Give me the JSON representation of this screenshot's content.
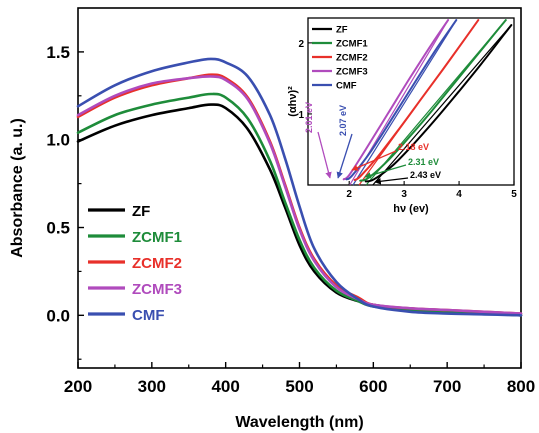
{
  "chart_data": [
    {
      "type": "line",
      "xlabel": "Wavelength (nm)",
      "ylabel": "Absorbance (a. u.)",
      "xlim": [
        200,
        800
      ],
      "ylim": [
        -0.3,
        1.75
      ],
      "x_ticks": [
        "200",
        "300",
        "400",
        "500",
        "600",
        "700",
        "800"
      ],
      "y_ticks": [
        "0.0",
        "0.5",
        "1.0",
        "1.5"
      ],
      "grid": false,
      "legend_position": "bottom-left",
      "series": [
        {
          "name": "ZF",
          "color": "#000000",
          "points": [
            [
              200,
              0.99
            ],
            [
              250,
              1.08
            ],
            [
              300,
              1.14
            ],
            [
              350,
              1.18
            ],
            [
              380,
              1.2
            ],
            [
              400,
              1.18
            ],
            [
              430,
              1.06
            ],
            [
              460,
              0.83
            ],
            [
              480,
              0.62
            ],
            [
              500,
              0.4
            ],
            [
              520,
              0.25
            ],
            [
              550,
              0.13
            ],
            [
              580,
              0.08
            ],
            [
              600,
              0.06
            ],
            [
              650,
              0.03
            ],
            [
              700,
              0.02
            ],
            [
              750,
              0.01
            ],
            [
              800,
              0.0
            ]
          ]
        },
        {
          "name": "ZCMF1",
          "color": "#1e8c3a",
          "points": [
            [
              200,
              1.04
            ],
            [
              250,
              1.14
            ],
            [
              300,
              1.2
            ],
            [
              350,
              1.24
            ],
            [
              380,
              1.26
            ],
            [
              400,
              1.24
            ],
            [
              430,
              1.12
            ],
            [
              460,
              0.88
            ],
            [
              480,
              0.65
            ],
            [
              500,
              0.43
            ],
            [
              520,
              0.27
            ],
            [
              550,
              0.14
            ],
            [
              580,
              0.08
            ],
            [
              600,
              0.05
            ],
            [
              650,
              0.03
            ],
            [
              700,
              0.02
            ],
            [
              750,
              0.01
            ],
            [
              800,
              0.0
            ]
          ]
        },
        {
          "name": "ZCMF2",
          "color": "#e8302a",
          "points": [
            [
              200,
              1.13
            ],
            [
              250,
              1.24
            ],
            [
              300,
              1.31
            ],
            [
              350,
              1.35
            ],
            [
              380,
              1.37
            ],
            [
              400,
              1.35
            ],
            [
              430,
              1.24
            ],
            [
              460,
              0.99
            ],
            [
              480,
              0.75
            ],
            [
              500,
              0.5
            ],
            [
              520,
              0.32
            ],
            [
              550,
              0.17
            ],
            [
              580,
              0.1
            ],
            [
              600,
              0.06
            ],
            [
              650,
              0.04
            ],
            [
              700,
              0.03
            ],
            [
              750,
              0.02
            ],
            [
              800,
              0.01
            ]
          ]
        },
        {
          "name": "ZCMF3",
          "color": "#b04bbd",
          "points": [
            [
              200,
              1.14
            ],
            [
              250,
              1.25
            ],
            [
              300,
              1.32
            ],
            [
              350,
              1.35
            ],
            [
              380,
              1.36
            ],
            [
              400,
              1.34
            ],
            [
              430,
              1.23
            ],
            [
              460,
              0.98
            ],
            [
              480,
              0.74
            ],
            [
              500,
              0.49
            ],
            [
              520,
              0.31
            ],
            [
              550,
              0.16
            ],
            [
              580,
              0.09
            ],
            [
              600,
              0.06
            ],
            [
              650,
              0.04
            ],
            [
              700,
              0.03
            ],
            [
              750,
              0.02
            ],
            [
              800,
              0.01
            ]
          ]
        },
        {
          "name": "CMF",
          "color": "#3a4fb0",
          "points": [
            [
              200,
              1.19
            ],
            [
              250,
              1.31
            ],
            [
              300,
              1.39
            ],
            [
              350,
              1.44
            ],
            [
              380,
              1.46
            ],
            [
              400,
              1.44
            ],
            [
              430,
              1.36
            ],
            [
              460,
              1.14
            ],
            [
              480,
              0.9
            ],
            [
              500,
              0.62
            ],
            [
              520,
              0.38
            ],
            [
              550,
              0.19
            ],
            [
              580,
              0.09
            ],
            [
              600,
              0.05
            ],
            [
              650,
              0.02
            ],
            [
              700,
              0.01
            ],
            [
              750,
              0.005
            ],
            [
              800,
              0.0
            ]
          ]
        }
      ]
    },
    {
      "type": "line",
      "xlabel": "hν (ev)",
      "ylabel": "(αhν)²",
      "xlim": [
        1.25,
        5
      ],
      "ylim": [
        0,
        2.35
      ],
      "x_ticks": [
        "2",
        "3",
        "4",
        "5"
      ],
      "y_ticks": [
        "1",
        "2"
      ],
      "grid": false,
      "legend_position": "top-left",
      "series": [
        {
          "name": "ZF",
          "color": "#000000",
          "points": [
            [
              2.3,
              0.05
            ],
            [
              2.45,
              0.08
            ],
            [
              2.8,
              0.28
            ],
            [
              3.2,
              0.6
            ],
            [
              3.6,
              0.95
            ],
            [
              4.0,
              1.32
            ],
            [
              4.4,
              1.7
            ],
            [
              4.8,
              2.1
            ],
            [
              4.95,
              2.25
            ]
          ]
        },
        {
          "name": "ZCMF1",
          "color": "#1e8c3a",
          "points": [
            [
              2.2,
              0.06
            ],
            [
              2.35,
              0.1
            ],
            [
              2.7,
              0.34
            ],
            [
              3.1,
              0.68
            ],
            [
              3.5,
              1.04
            ],
            [
              3.9,
              1.42
            ],
            [
              4.3,
              1.8
            ],
            [
              4.7,
              2.18
            ],
            [
              4.85,
              2.32
            ]
          ]
        },
        {
          "name": "ZCMF2",
          "color": "#e8302a",
          "points": [
            [
              2.1,
              0.07
            ],
            [
              2.2,
              0.12
            ],
            [
              2.5,
              0.38
            ],
            [
              2.9,
              0.78
            ],
            [
              3.3,
              1.2
            ],
            [
              3.7,
              1.62
            ],
            [
              4.1,
              2.05
            ],
            [
              4.35,
              2.32
            ]
          ]
        },
        {
          "name": "ZCMF3",
          "color": "#b04bbd",
          "points": [
            [
              1.9,
              0.08
            ],
            [
              2.0,
              0.14
            ],
            [
              2.3,
              0.5
            ],
            [
              2.7,
              1.0
            ],
            [
              3.1,
              1.5
            ],
            [
              3.5,
              1.98
            ],
            [
              3.8,
              2.32
            ]
          ]
        },
        {
          "name": "CMF",
          "color": "#3a4fb0",
          "points": [
            [
              1.95,
              0.08
            ],
            [
              2.05,
              0.13
            ],
            [
              2.4,
              0.48
            ],
            [
              2.8,
              0.96
            ],
            [
              3.2,
              1.45
            ],
            [
              3.6,
              1.93
            ],
            [
              3.95,
              2.32
            ]
          ]
        }
      ],
      "annotations": [
        {
          "text": "2.01 eV",
          "color": "#b04bbd",
          "value": 2.01
        },
        {
          "text": "2.07 eV",
          "color": "#3a4fb0",
          "value": 2.07
        },
        {
          "text": "2.18 eV",
          "color": "#e8302a",
          "value": 2.18
        },
        {
          "text": "2.31 eV",
          "color": "#1e8c3a",
          "value": 2.31
        },
        {
          "text": "2.43 eV",
          "color": "#000000",
          "value": 2.43
        }
      ]
    }
  ]
}
